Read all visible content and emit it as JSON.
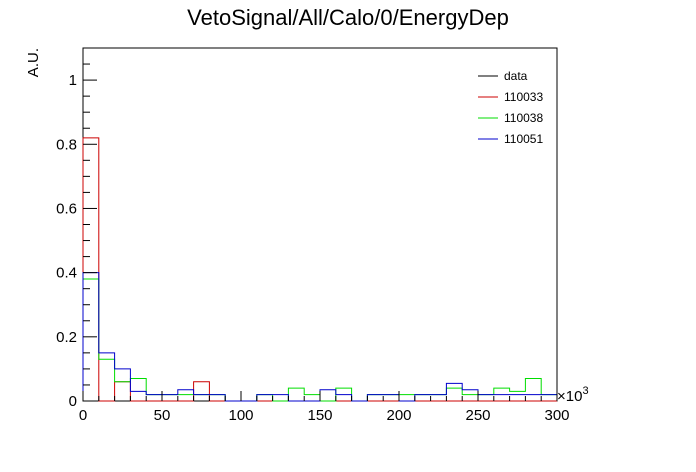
{
  "chart_data": {
    "type": "histogram",
    "title": "VetoSignal/All/Calo/0/EnergyDep",
    "xlabel": "",
    "ylabel": "A.U.",
    "x_multiplier_label": "×10",
    "x_multiplier_exponent": "3",
    "xlim": [
      0,
      300
    ],
    "ylim": [
      0,
      1.1
    ],
    "x_ticks": [
      0,
      50,
      100,
      150,
      200,
      250,
      300
    ],
    "x_tick_labels": [
      "0",
      "50",
      "100",
      "150",
      "200",
      "250",
      "300"
    ],
    "y_ticks": [
      0,
      0.2,
      0.4,
      0.6,
      0.8,
      1
    ],
    "y_tick_labels": [
      "0",
      "0.2",
      "0.4",
      "0.6",
      "0.8",
      "1"
    ],
    "bin_edges": [
      0,
      10,
      20,
      30,
      40,
      50,
      60,
      70,
      80,
      90,
      100,
      110,
      120,
      130,
      140,
      150,
      160,
      170,
      180,
      190,
      200,
      210,
      220,
      230,
      240,
      250,
      260,
      270,
      280,
      290,
      300
    ],
    "legend_position": "top-right",
    "series": [
      {
        "name": "data",
        "color": "#000000",
        "values": []
      },
      {
        "name": "110033",
        "color": "#cc0000",
        "values": [
          0.82,
          0,
          0.06,
          0,
          0,
          0,
          0,
          0.06,
          0,
          0,
          0,
          0,
          0,
          0,
          0,
          0,
          0,
          0,
          0,
          0,
          0,
          0,
          0,
          0,
          0,
          0,
          0,
          0,
          0,
          0
        ]
      },
      {
        "name": "110038",
        "color": "#00dd00",
        "values": [
          0.38,
          0.13,
          0.06,
          0.07,
          0.02,
          0.02,
          0.02,
          0.02,
          0.02,
          0,
          0,
          0.02,
          0,
          0.04,
          0.02,
          0,
          0.04,
          0,
          0.02,
          0.02,
          0.02,
          0.02,
          0.02,
          0.04,
          0.02,
          0.02,
          0.04,
          0.03,
          0.07,
          0.02
        ]
      },
      {
        "name": "110051",
        "color": "#0000cc",
        "values": [
          0.4,
          0.15,
          0.1,
          0.03,
          0.02,
          0.02,
          0.035,
          0.02,
          0.02,
          0,
          0,
          0.02,
          0.02,
          0,
          0,
          0.035,
          0.02,
          0,
          0.02,
          0.02,
          0,
          0.02,
          0.02,
          0.055,
          0.035,
          0.02,
          0.02,
          0.02,
          0.02,
          0.02
        ]
      }
    ]
  }
}
